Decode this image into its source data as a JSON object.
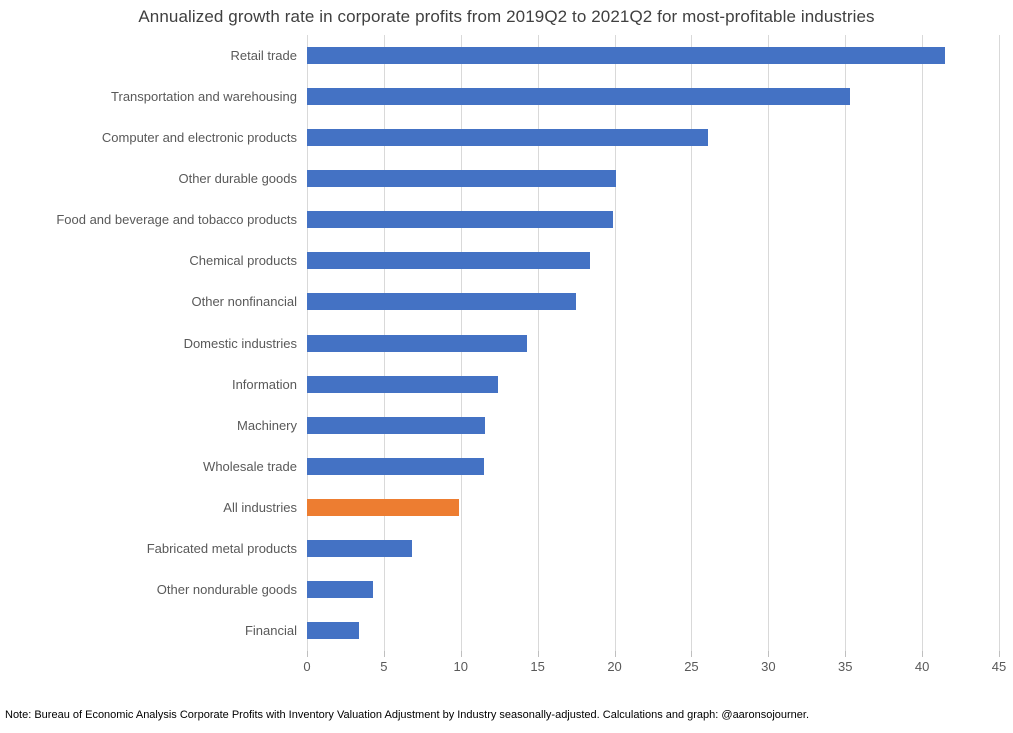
{
  "title": "Annualized growth rate in corporate profits from 2019Q2 to 2021Q2 for most-profitable industries",
  "note": "Note: Bureau of Economic Analysis Corporate Profits with Inventory Valuation Adjustment by Industry seasonally-adjusted. Calculations and graph: @aaronsojourner.",
  "colors": {
    "bar": "#4472C4",
    "highlight": "#ED7D31",
    "gridline": "#D9D9D9",
    "tick": "#BFBFBF",
    "axis_label": "#595959",
    "title": "#404040",
    "note": "#000000",
    "background": "#FFFFFF"
  },
  "chart_data": {
    "type": "bar",
    "orientation": "horizontal",
    "title": "Annualized growth rate in corporate profits from 2019Q2 to 2021Q2 for most-profitable industries",
    "xlabel": "",
    "ylabel": "",
    "xlim": [
      0,
      45
    ],
    "xticks": [
      0,
      5,
      10,
      15,
      20,
      25,
      30,
      35,
      40,
      45
    ],
    "grid": true,
    "legend": false,
    "highlighted_category": "All industries",
    "categories": [
      "Retail trade",
      "Transportation and warehousing",
      "Computer and electronic products",
      "Other durable goods",
      "Food and beverage and tobacco products",
      "Chemical products",
      "Other nonfinancial",
      "Domestic industries",
      "Information",
      "Machinery",
      "Wholesale trade",
      "All industries",
      "Fabricated metal products",
      "Other nondurable goods",
      "Financial"
    ],
    "values": [
      41.5,
      35.3,
      26.1,
      20.1,
      19.9,
      18.4,
      17.5,
      14.3,
      12.4,
      11.6,
      11.5,
      9.9,
      6.8,
      4.3,
      3.4
    ]
  }
}
